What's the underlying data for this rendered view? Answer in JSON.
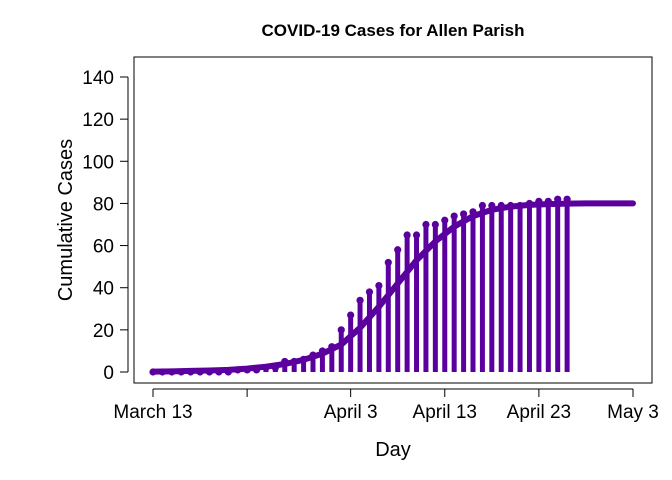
{
  "chart_data": {
    "type": "line",
    "title": "COVID-19 Cases for Allen Parish",
    "xlabel": "Day",
    "ylabel": "Cumulative Cases",
    "ylim": [
      0,
      140
    ],
    "yticks": [
      0,
      20,
      40,
      60,
      80,
      100,
      120,
      140
    ],
    "xlim": [
      "2020-03-13",
      "2020-05-03"
    ],
    "xticks": [
      {
        "date": "2020-03-13",
        "label": "March 13"
      },
      {
        "date": "2020-03-23",
        "label": ""
      },
      {
        "date": "2020-04-03",
        "label": "April 3"
      },
      {
        "date": "2020-04-13",
        "label": "April 13"
      },
      {
        "date": "2020-04-23",
        "label": "April 23"
      },
      {
        "date": "2020-05-03",
        "label": "May 3"
      }
    ],
    "grid": false,
    "legend": "none",
    "color": "#5b009e",
    "series": [
      {
        "style": "points-with-vertical-lines",
        "x": [
          "2020-03-13",
          "2020-03-14",
          "2020-03-15",
          "2020-03-16",
          "2020-03-17",
          "2020-03-18",
          "2020-03-19",
          "2020-03-20",
          "2020-03-21",
          "2020-03-22",
          "2020-03-23",
          "2020-03-24",
          "2020-03-25",
          "2020-03-26",
          "2020-03-27",
          "2020-03-28",
          "2020-03-29",
          "2020-03-30",
          "2020-03-31",
          "2020-04-01",
          "2020-04-02",
          "2020-04-03",
          "2020-04-04",
          "2020-04-05",
          "2020-04-06",
          "2020-04-07",
          "2020-04-08",
          "2020-04-09",
          "2020-04-10",
          "2020-04-11",
          "2020-04-12",
          "2020-04-13",
          "2020-04-14",
          "2020-04-15",
          "2020-04-16",
          "2020-04-17",
          "2020-04-18",
          "2020-04-19",
          "2020-04-20",
          "2020-04-21",
          "2020-04-22",
          "2020-04-23",
          "2020-04-24",
          "2020-04-25",
          "2020-04-26"
        ],
        "y": [
          0,
          0,
          0,
          0,
          0,
          0,
          0,
          0,
          0,
          1,
          1,
          1,
          2,
          2,
          5,
          5,
          6,
          8,
          10,
          12,
          20,
          27,
          34,
          38,
          41,
          52,
          58,
          65,
          65,
          70,
          70,
          72,
          74,
          75,
          76,
          79,
          79,
          79,
          79,
          79,
          80,
          81,
          81,
          82,
          82
        ]
      },
      {
        "style": "fitted-curve",
        "x": [
          "2020-03-13",
          "2020-03-15",
          "2020-03-17",
          "2020-03-19",
          "2020-03-21",
          "2020-03-23",
          "2020-03-25",
          "2020-03-27",
          "2020-03-29",
          "2020-03-31",
          "2020-04-02",
          "2020-04-04",
          "2020-04-06",
          "2020-04-08",
          "2020-04-10",
          "2020-04-12",
          "2020-04-14",
          "2020-04-16",
          "2020-04-18",
          "2020-04-20",
          "2020-04-22",
          "2020-04-24",
          "2020-04-26",
          "2020-04-28",
          "2020-04-30",
          "2020-05-03"
        ],
        "y": [
          0.2,
          0.3,
          0.5,
          0.7,
          1,
          1.6,
          2.5,
          3.8,
          5.8,
          8.7,
          13,
          21,
          31,
          42,
          53,
          62,
          69,
          74,
          77,
          78.5,
          79.3,
          79.7,
          79.9,
          80,
          80,
          80
        ]
      }
    ]
  }
}
